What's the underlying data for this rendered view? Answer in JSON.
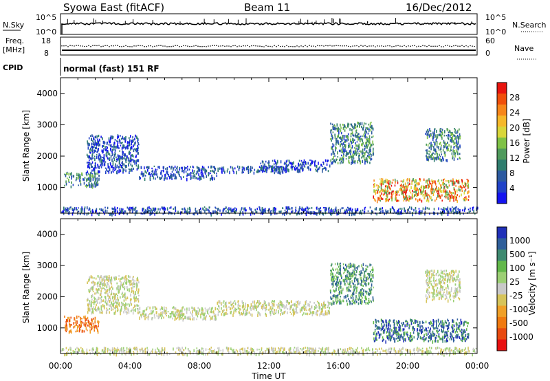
{
  "header": {
    "title": "Syowa East (fitACF)",
    "beam": "Beam 11",
    "date": "16/Dec/2012"
  },
  "top_panels": {
    "nsky_label": "N.Sky",
    "nsky_ticks": [
      "10^5",
      "10^0"
    ],
    "nsearch_label": "N.Search",
    "nsearch_ticks": [
      "10^5",
      "10^0"
    ],
    "freq_label_1": "Freq.",
    "freq_label_2": "[MHz]",
    "freq_ticks": [
      "18",
      "8"
    ],
    "nave_label": "Nave",
    "nave_ticks": [
      "60",
      "0"
    ],
    "cpid_label": "CPID",
    "cpid_text": "normal (fast) 151 RF"
  },
  "chart_data": [
    {
      "type": "heatmap",
      "name": "power",
      "ylabel": "Slant Range [km]",
      "xlabel": "Time UT",
      "x_ticks": [
        "00:00",
        "04:00",
        "08:00",
        "12:00",
        "16:00",
        "20:00",
        "00:00"
      ],
      "y_ticks": [
        "4000",
        "3000",
        "2000",
        "1000"
      ],
      "ylim": [
        180,
        4500
      ],
      "xlim_hours": [
        0,
        24
      ],
      "colorbar": {
        "label": "Power [dB]",
        "ticks": [
          "28",
          "24",
          "20",
          "16",
          "12",
          "8",
          "4"
        ],
        "colors": [
          "#e8140f",
          "#f04f0b",
          "#f7861a",
          "#f6b82a",
          "#d9d63a",
          "#7fc246",
          "#4f9a5c",
          "#2f7d6e",
          "#2c5aa0",
          "#2042c8",
          "#1414f0"
        ]
      },
      "patches": [
        {
          "t": [
            0.2,
            2.2
          ],
          "r": [
            1050,
            1500
          ],
          "level": "low-mid"
        },
        {
          "t": [
            1.5,
            4.5
          ],
          "r": [
            1500,
            2700
          ],
          "level": "low"
        },
        {
          "t": [
            4.5,
            9.0
          ],
          "r": [
            1300,
            1700
          ],
          "level": "low"
        },
        {
          "t": [
            9.0,
            13.0
          ],
          "r": [
            1500,
            1700
          ],
          "level": "low"
        },
        {
          "t": [
            11.5,
            15.5
          ],
          "r": [
            1550,
            1900
          ],
          "level": "low"
        },
        {
          "t": [
            15.5,
            18.0
          ],
          "r": [
            1800,
            3100
          ],
          "level": "low-mid"
        },
        {
          "t": [
            18.0,
            23.5
          ],
          "r": [
            600,
            1300
          ],
          "level": "mid-high"
        },
        {
          "t": [
            21.0,
            23.0
          ],
          "r": [
            1900,
            2900
          ],
          "level": "low-mid"
        },
        {
          "t": [
            0.0,
            24.0
          ],
          "r": [
            180,
            400
          ],
          "level": "low"
        }
      ]
    },
    {
      "type": "heatmap",
      "name": "velocity",
      "ylabel": "Slant Range [km]",
      "xlabel": "Time UT",
      "x_ticks": [
        "00:00",
        "04:00",
        "08:00",
        "12:00",
        "16:00",
        "20:00",
        "00:00"
      ],
      "y_ticks": [
        "4000",
        "3000",
        "2000",
        "1000"
      ],
      "ylim": [
        180,
        4500
      ],
      "xlim_hours": [
        0,
        24
      ],
      "colorbar": {
        "label": "Velocity [m s⁻¹]",
        "ticks": [
          "1000",
          "500",
          "100",
          "25",
          "-25",
          "-100",
          "-500",
          "-1000"
        ],
        "colors": [
          "#2030b8",
          "#2f5f9a",
          "#3e8a70",
          "#62b84a",
          "#9ccf74",
          "#c9c9c9",
          "#d6c45a",
          "#f0a028",
          "#f07a10",
          "#e84a10",
          "#e81010"
        ]
      },
      "patches": [
        {
          "t": [
            0.2,
            2.2
          ],
          "r": [
            900,
            1400
          ],
          "level": "neg-mid"
        },
        {
          "t": [
            1.5,
            4.5
          ],
          "r": [
            1500,
            2700
          ],
          "level": "near-zero"
        },
        {
          "t": [
            4.5,
            9.0
          ],
          "r": [
            1300,
            1700
          ],
          "level": "near-zero"
        },
        {
          "t": [
            9.0,
            15.5
          ],
          "r": [
            1450,
            1900
          ],
          "level": "near-zero"
        },
        {
          "t": [
            15.5,
            18.0
          ],
          "r": [
            1800,
            3100
          ],
          "level": "pos-mid"
        },
        {
          "t": [
            18.0,
            23.5
          ],
          "r": [
            600,
            1300
          ],
          "level": "pos-high"
        },
        {
          "t": [
            21.0,
            23.0
          ],
          "r": [
            1900,
            2900
          ],
          "level": "near-zero"
        },
        {
          "t": [
            0.0,
            24.0
          ],
          "r": [
            180,
            400
          ],
          "level": "near-zero"
        }
      ]
    }
  ],
  "x_axis_label": "Time UT"
}
